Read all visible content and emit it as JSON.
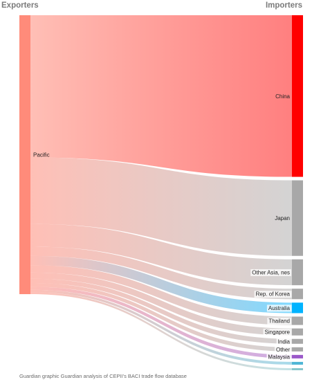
{
  "header": {
    "exporters_label": "Exporters",
    "importers_label": "Importers"
  },
  "footer": {
    "credit": "Guardian graphic Guardian analysis of CEPII's BACI trade flow database"
  },
  "chart_data": {
    "type": "sankey",
    "source": {
      "name": "Pacific",
      "color": "#ff8b7a"
    },
    "targets": [
      {
        "name": "China",
        "value": 231,
        "color": "#ff0000",
        "label_bg": false
      },
      {
        "name": "Japan",
        "value": 108,
        "color": "#a8a8a8",
        "label_bg": false
      },
      {
        "name": "Other Asia, nes",
        "value": 37,
        "color": "#a8a8a8",
        "label_bg": true
      },
      {
        "name": "Rep. of Korea",
        "value": 15,
        "color": "#a8a8a8",
        "label_bg": true
      },
      {
        "name": "Australia",
        "value": 15,
        "color": "#00b3ff",
        "label_bg": true
      },
      {
        "name": "Thailand",
        "value": 12,
        "color": "#a8a8a8",
        "label_bg": true
      },
      {
        "name": "Singapore",
        "value": 10,
        "color": "#a8a8a8",
        "label_bg": true
      },
      {
        "name": "India",
        "value": 7,
        "color": "#a8a8a8",
        "label_bg": true
      },
      {
        "name": "Other",
        "value": 6,
        "color": "#a8a8a8",
        "label_bg": true
      },
      {
        "name": "Malaysia",
        "value": 5,
        "color": "#9b59c9",
        "label_bg": true
      },
      {
        "name": "",
        "value": 4,
        "color": "#4fb6d6",
        "label_bg": false
      },
      {
        "name": "",
        "value": 3,
        "color": "#86c6cc",
        "label_bg": false
      }
    ]
  }
}
